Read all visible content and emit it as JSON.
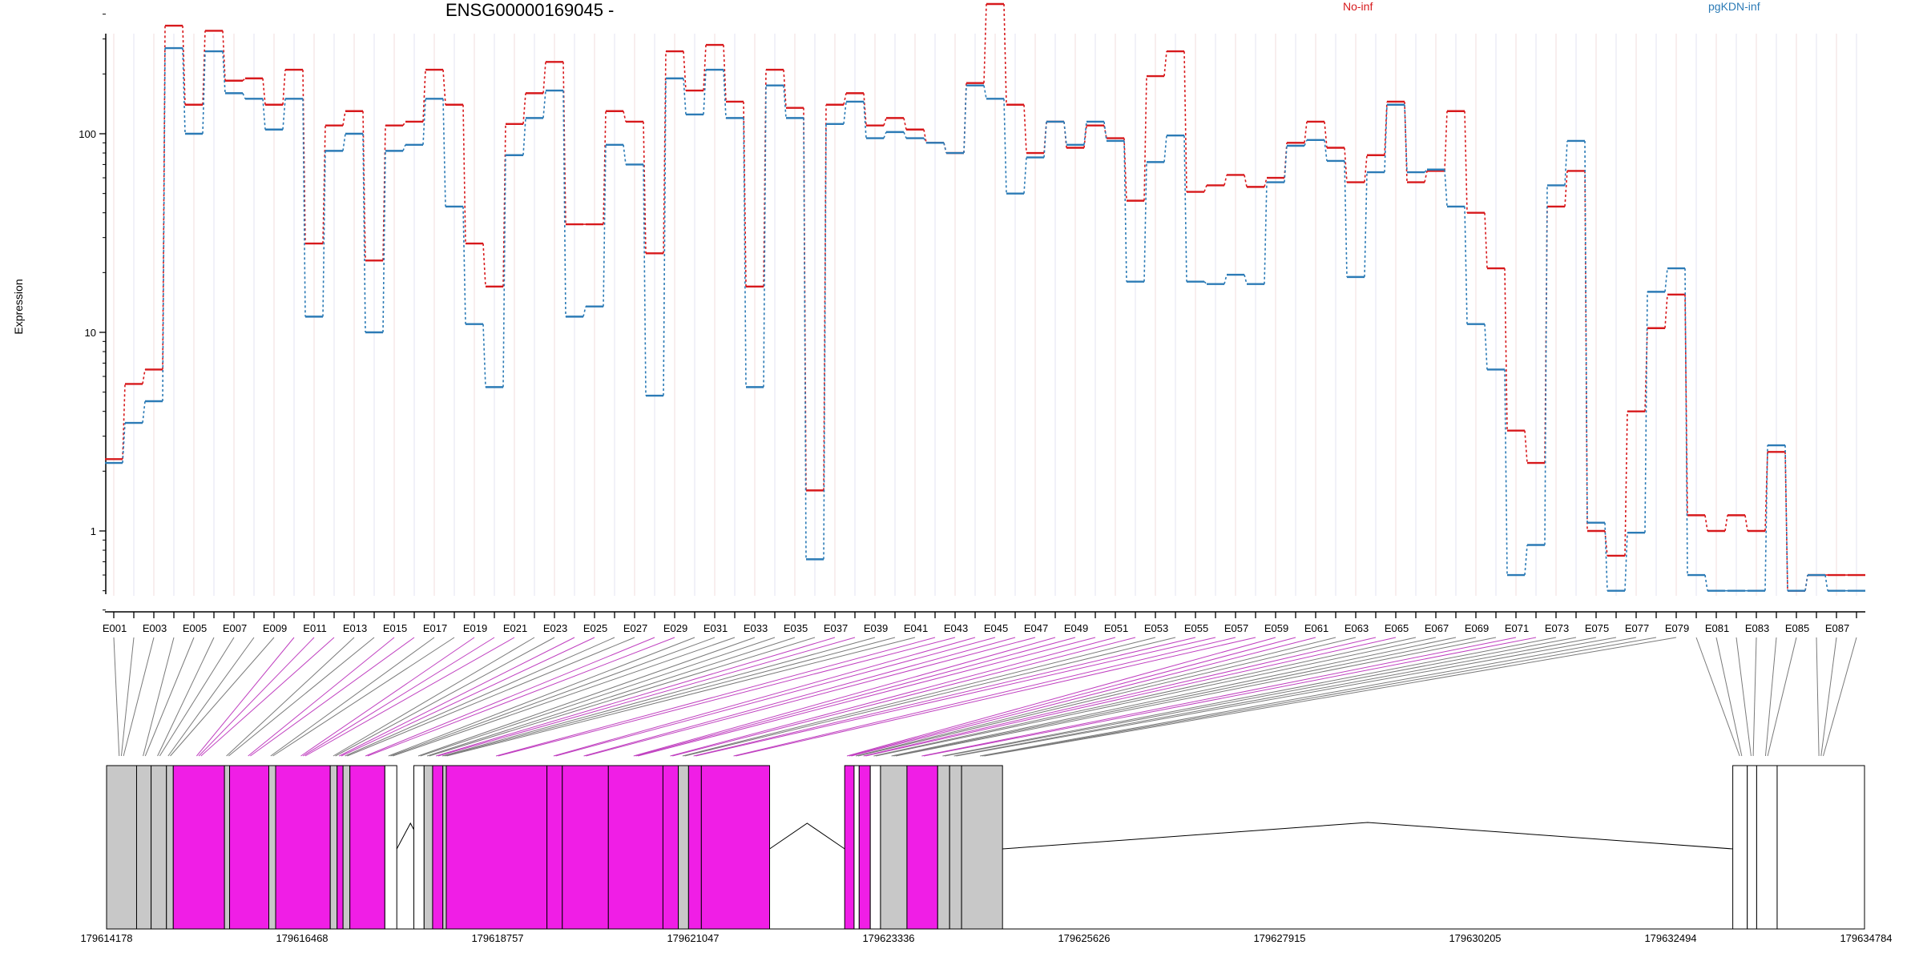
{
  "header": {
    "title": "ENSG00000169045 -",
    "legend": [
      {
        "label": "No-inf",
        "color": "#d7191c"
      },
      {
        "label": "pgKDN-inf",
        "color": "#2c7bb6"
      }
    ]
  },
  "chart_data": {
    "type": "line",
    "step": true,
    "ylabel": "Expression",
    "yscale": "log",
    "ylim": [
      0.4,
      600
    ],
    "yticks": [
      {
        "value": 1,
        "label": "1"
      },
      {
        "value": 10,
        "label": "10"
      },
      {
        "value": 100,
        "label": "100"
      }
    ],
    "grid": "vertical",
    "legend_position": "top",
    "x": [
      "E001",
      "E002",
      "E003",
      "E004",
      "E005",
      "E006",
      "E007",
      "E008",
      "E009",
      "E010",
      "E011",
      "E012",
      "E013",
      "E014",
      "E015",
      "E016",
      "E017",
      "E018",
      "E019",
      "E020",
      "E021",
      "E022",
      "E023",
      "E024",
      "E025",
      "E026",
      "E027",
      "E028",
      "E029",
      "E030",
      "E031",
      "E032",
      "E033",
      "E034",
      "E035",
      "E036",
      "E037",
      "E038",
      "E039",
      "E040",
      "E041",
      "E042",
      "E043",
      "E044",
      "E045",
      "E046",
      "E047",
      "E048",
      "E049",
      "E050",
      "E051",
      "E052",
      "E053",
      "E054",
      "E055",
      "E056",
      "E057",
      "E058",
      "E059",
      "E060",
      "E061",
      "E062",
      "E063",
      "E064",
      "E065",
      "E066",
      "E067",
      "E068",
      "E069",
      "E070",
      "E071",
      "E072",
      "E073",
      "E074",
      "E075",
      "E076",
      "E077",
      "E078",
      "E079",
      "E080",
      "E081",
      "E082",
      "E083",
      "E084",
      "E085",
      "E086",
      "E087",
      "E088"
    ],
    "xtick_labels": [
      "E001",
      "E003",
      "E005",
      "E007",
      "E009",
      "E011",
      "E013",
      "E015",
      "E017",
      "E019",
      "E021",
      "E023",
      "E025",
      "E027",
      "E029",
      "E031",
      "E033",
      "E035",
      "E037",
      "E039",
      "E041",
      "E043",
      "E045",
      "E047",
      "E049",
      "E051",
      "E053",
      "E055",
      "E057",
      "E059",
      "E061",
      "E063",
      "E065",
      "E067",
      "E069",
      "E071",
      "E073",
      "E075",
      "E077",
      "E079",
      "E081",
      "E083",
      "E085",
      "E087"
    ],
    "series": [
      {
        "name": "No-inf",
        "color": "#d7191c",
        "values": [
          2.3,
          5.5,
          6.5,
          350,
          140,
          330,
          185,
          190,
          140,
          210,
          28,
          110,
          130,
          23,
          110,
          115,
          210,
          140,
          28,
          17,
          112,
          160,
          230,
          35,
          35,
          130,
          115,
          25,
          260,
          165,
          280,
          145,
          17,
          210,
          135,
          1.6,
          140,
          160,
          110,
          120,
          105,
          90,
          80,
          180,
          450,
          140,
          80,
          115,
          85,
          110,
          95,
          46,
          195,
          260,
          51,
          55,
          62,
          54,
          60,
          90,
          115,
          85,
          57,
          78,
          145,
          57,
          65,
          130,
          40,
          21,
          3.2,
          2.2,
          43,
          65,
          1.0,
          0.75,
          4.0,
          10.5,
          15.5,
          1.2,
          1.0,
          1.2,
          1.0,
          2.5,
          0.5,
          0.6,
          0.6,
          0.6
        ]
      },
      {
        "name": "pgKDN-inf",
        "color": "#2c7bb6",
        "values": [
          2.2,
          3.5,
          4.5,
          270,
          100,
          260,
          160,
          150,
          105,
          150,
          12,
          82,
          100,
          10,
          82,
          88,
          150,
          43,
          11,
          5.3,
          78,
          120,
          165,
          12,
          13.5,
          88,
          70,
          4.8,
          190,
          125,
          210,
          120,
          5.3,
          175,
          120,
          0.72,
          112,
          145,
          95,
          102,
          95,
          90,
          80,
          175,
          150,
          50,
          76,
          115,
          88,
          115,
          92,
          18,
          72,
          98,
          18,
          17.5,
          19.5,
          17.5,
          57,
          87,
          93,
          73,
          19,
          64,
          140,
          64,
          66,
          43,
          11,
          6.5,
          0.6,
          0.85,
          55,
          92,
          1.1,
          0.5,
          0.98,
          16,
          21,
          0.6,
          0.5,
          0.5,
          0.5,
          2.7,
          0.5,
          0.6,
          0.5,
          0.5
        ]
      }
    ],
    "genomic_axis": {
      "ticks": [
        "179614178",
        "179616468",
        "179618757",
        "179621047",
        "179623336",
        "179625626",
        "179627915",
        "179630205",
        "179632494",
        "179634784"
      ]
    },
    "exon_track": {
      "blocks": [
        {
          "start": 179614178,
          "end": 179614530,
          "color": "#c8c8c8"
        },
        {
          "start": 179614530,
          "end": 179614700,
          "color": "#c8c8c8"
        },
        {
          "start": 179614700,
          "end": 179614880,
          "color": "#c8c8c8"
        },
        {
          "start": 179614880,
          "end": 179614960,
          "color": "#c8c8c8"
        },
        {
          "start": 179614960,
          "end": 179615560,
          "color": "#f01ee6"
        },
        {
          "start": 179615560,
          "end": 179615620,
          "color": "#c8c8c8"
        },
        {
          "start": 179615620,
          "end": 179616080,
          "color": "#f01ee6"
        },
        {
          "start": 179616080,
          "end": 179616160,
          "color": "#c8c8c8"
        },
        {
          "start": 179616160,
          "end": 179616800,
          "color": "#f01ee6"
        },
        {
          "start": 179616800,
          "end": 179616880,
          "color": "#c8c8c8"
        },
        {
          "start": 179616880,
          "end": 179616950,
          "color": "#f01ee6"
        },
        {
          "start": 179616950,
          "end": 179617030,
          "color": "#c8c8c8"
        },
        {
          "start": 179617030,
          "end": 179617440,
          "color": "#f01ee6"
        },
        {
          "start": 179617440,
          "end": 179617580,
          "color": "#ffffff"
        },
        {
          "start": 179617780,
          "end": 179617900,
          "color": "#ffffff"
        },
        {
          "start": 179617900,
          "end": 179618000,
          "color": "#c8c8c8"
        },
        {
          "start": 179618000,
          "end": 179618120,
          "color": "#f01ee6"
        },
        {
          "start": 179618120,
          "end": 179618160,
          "color": "#c8c8c8"
        },
        {
          "start": 179618160,
          "end": 179619340,
          "color": "#f01ee6"
        },
        {
          "start": 179619340,
          "end": 179619520,
          "color": "#f01ee6"
        },
        {
          "start": 179619520,
          "end": 179620060,
          "color": "#f01ee6"
        },
        {
          "start": 179620060,
          "end": 179620700,
          "color": "#f01ee6"
        },
        {
          "start": 179620700,
          "end": 179620880,
          "color": "#f01ee6"
        },
        {
          "start": 179620880,
          "end": 179621000,
          "color": "#c8c8c8"
        },
        {
          "start": 179621000,
          "end": 179621150,
          "color": "#f01ee6"
        },
        {
          "start": 179621150,
          "end": 179621950,
          "color": "#f01ee6"
        },
        {
          "start": 179622830,
          "end": 179622940,
          "color": "#f01ee6"
        },
        {
          "start": 179622940,
          "end": 179623000,
          "color": "#ffffff"
        },
        {
          "start": 179623000,
          "end": 179623130,
          "color": "#f01ee6"
        },
        {
          "start": 179623130,
          "end": 179623250,
          "color": "#ffffff"
        },
        {
          "start": 179623250,
          "end": 179623560,
          "color": "#c8c8c8"
        },
        {
          "start": 179623560,
          "end": 179623920,
          "color": "#f01ee6"
        },
        {
          "start": 179623920,
          "end": 179624060,
          "color": "#c8c8c8"
        },
        {
          "start": 179624060,
          "end": 179624200,
          "color": "#c8c8c8"
        },
        {
          "start": 179624200,
          "end": 179624680,
          "color": "#c8c8c8"
        },
        {
          "start": 179633240,
          "end": 179633410,
          "color": "#ffffff"
        },
        {
          "start": 179633410,
          "end": 179633520,
          "color": "#ffffff"
        },
        {
          "start": 179633520,
          "end": 179633760,
          "color": "#ffffff"
        },
        {
          "start": 179633760,
          "end": 179634784,
          "color": "#ffffff"
        }
      ],
      "introns": [
        {
          "start": 179617440,
          "end": 179617580
        },
        {
          "start": 179617580,
          "end": 179617900
        },
        {
          "start": 179621950,
          "end": 179622830
        },
        {
          "start": 179624680,
          "end": 179633240
        }
      ]
    }
  }
}
